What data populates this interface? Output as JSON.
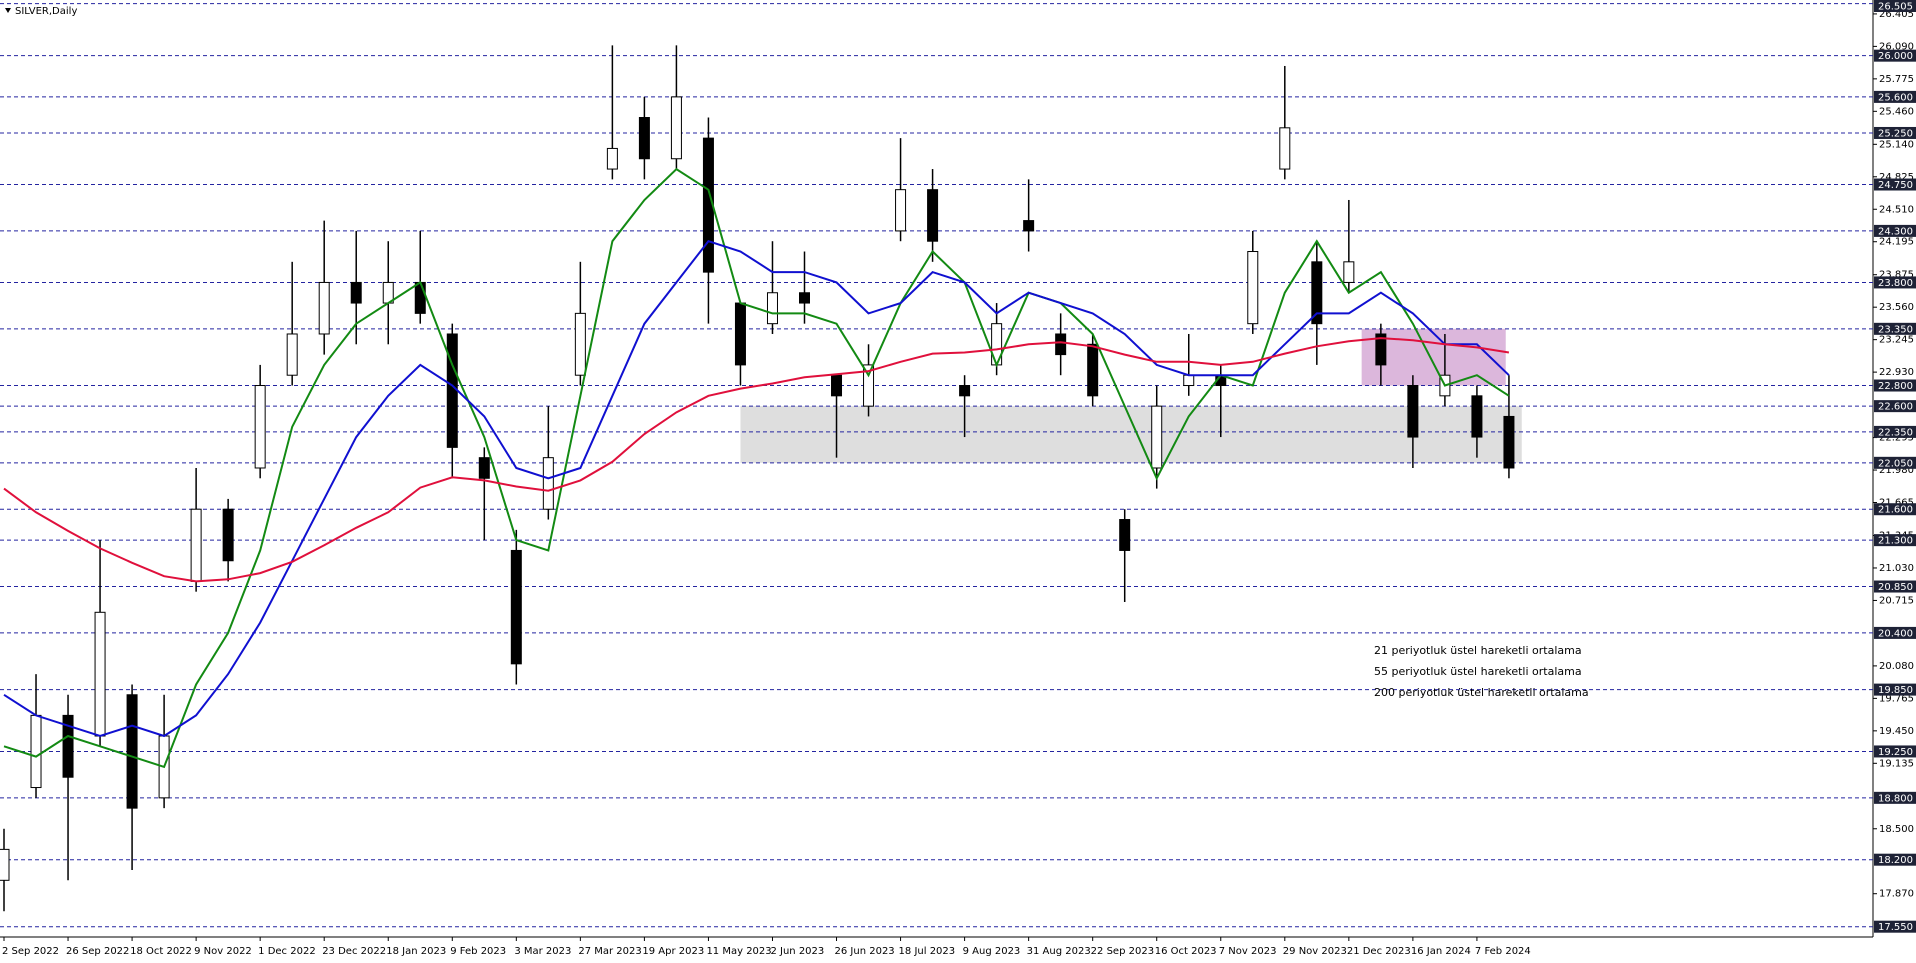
{
  "chart_data": {
    "type": "ohlc",
    "title": "SILVER,Daily",
    "categories": [
      "2 Sep 2022",
      null,
      "26 Sep 2022",
      null,
      "18 Oct 2022",
      null,
      "9 Nov 2022",
      null,
      "1 Dec 2022",
      null,
      "23 Dec 2022",
      null,
      "18 Jan 2023",
      null,
      "9 Feb 2023",
      null,
      "3 Mar 2023",
      null,
      "27 Mar 2023",
      null,
      "19 Apr 2023",
      null,
      "11 May 2023",
      null,
      "2 Jun 2023",
      null,
      "26 Jun 2023",
      null,
      "18 Jul 2023",
      null,
      "9 Aug 2023",
      null,
      "31 Aug 2023",
      null,
      "22 Sep 2023",
      null,
      "16 Oct 2023",
      null,
      "7 Nov 2023",
      null,
      "29 Nov 2023",
      null,
      "21 Dec 2023",
      null,
      "16 Jan 2024",
      null,
      "7 Feb 2024",
      null
    ],
    "open": [
      18.0,
      18.9,
      19.6,
      19.4,
      19.8,
      18.8,
      20.9,
      21.6,
      22.0,
      22.9,
      23.3,
      23.8,
      23.6,
      23.8,
      23.3,
      22.1,
      21.2,
      21.6,
      22.9,
      24.9,
      25.4,
      25.0,
      25.2,
      23.6,
      23.4,
      23.7,
      22.9,
      22.6,
      24.3,
      24.7,
      22.8,
      23.0,
      24.4,
      23.3,
      23.2,
      21.5,
      22.0,
      22.8,
      22.9,
      23.4,
      24.9,
      24.0,
      23.8,
      23.3,
      22.8,
      22.7,
      22.7,
      22.5
    ],
    "high": [
      18.5,
      20.0,
      19.8,
      21.3,
      19.9,
      19.8,
      22.0,
      21.7,
      23.0,
      24.0,
      24.4,
      24.3,
      24.2,
      24.3,
      23.4,
      22.2,
      21.4,
      22.6,
      24.0,
      26.1,
      25.6,
      26.1,
      25.4,
      23.6,
      24.2,
      24.1,
      22.9,
      23.2,
      25.2,
      24.9,
      22.9,
      23.6,
      24.8,
      23.5,
      23.3,
      21.6,
      22.8,
      23.3,
      23.0,
      24.3,
      25.9,
      24.2,
      24.6,
      23.4,
      22.9,
      23.3,
      22.8,
      22.9
    ],
    "low": [
      17.7,
      18.8,
      18.0,
      19.3,
      18.1,
      18.7,
      20.8,
      20.9,
      21.9,
      22.8,
      23.1,
      23.2,
      23.2,
      23.4,
      21.9,
      21.3,
      19.9,
      21.5,
      22.8,
      24.8,
      24.8,
      24.9,
      23.4,
      22.8,
      23.3,
      23.4,
      22.1,
      22.5,
      24.2,
      24.0,
      22.3,
      22.9,
      24.1,
      22.9,
      22.6,
      20.7,
      21.8,
      22.7,
      22.3,
      23.3,
      24.8,
      23.0,
      23.7,
      22.8,
      22.0,
      22.6,
      22.1,
      21.9
    ],
    "close": [
      18.3,
      19.6,
      19.0,
      20.6,
      18.7,
      19.4,
      21.6,
      21.1,
      22.8,
      23.3,
      23.8,
      23.6,
      23.8,
      23.5,
      22.2,
      21.9,
      20.1,
      22.1,
      23.5,
      25.1,
      25.0,
      25.6,
      23.9,
      23.0,
      23.7,
      23.6,
      22.7,
      23.0,
      24.7,
      24.2,
      22.7,
      23.4,
      24.3,
      23.1,
      22.7,
      21.2,
      22.6,
      22.9,
      22.8,
      24.1,
      25.3,
      23.4,
      24.0,
      23.0,
      22.3,
      22.9,
      22.3,
      22.0
    ],
    "series": [
      {
        "name": "21 periyotluk üstel hareketli ortalama",
        "color": "#138a13",
        "values": [
          19.3,
          19.2,
          19.4,
          19.3,
          19.2,
          19.1,
          19.9,
          20.4,
          21.2,
          22.4,
          23.0,
          23.4,
          23.6,
          23.8,
          23.0,
          22.3,
          21.3,
          21.2,
          22.7,
          24.2,
          24.6,
          24.9,
          24.7,
          23.6,
          23.5,
          23.5,
          23.4,
          22.9,
          23.6,
          24.1,
          23.8,
          23.0,
          23.7,
          23.6,
          23.3,
          22.6,
          21.9,
          22.5,
          22.9,
          22.8,
          23.7,
          24.2,
          23.7,
          23.9,
          23.4,
          22.8,
          22.9,
          22.7
        ]
      },
      {
        "name": "55 periyotluk üstel hareketli ortalama",
        "color": "#1010d0",
        "values": [
          19.8,
          19.6,
          19.5,
          19.4,
          19.5,
          19.4,
          19.6,
          20.0,
          20.5,
          21.1,
          21.7,
          22.3,
          22.7,
          23.0,
          22.8,
          22.5,
          22.0,
          21.9,
          22.0,
          22.7,
          23.4,
          23.8,
          24.2,
          24.1,
          23.9,
          23.9,
          23.8,
          23.5,
          23.6,
          23.9,
          23.8,
          23.5,
          23.7,
          23.6,
          23.5,
          23.3,
          23.0,
          22.9,
          22.9,
          22.9,
          23.2,
          23.5,
          23.5,
          23.7,
          23.5,
          23.2,
          23.2,
          22.9
        ]
      },
      {
        "name": "200 periyotluk üstel hareketli ortalama",
        "color": "#e0103c",
        "values": [
          21.8,
          21.57,
          21.39,
          21.22,
          21.08,
          20.95,
          20.9,
          20.92,
          20.98,
          21.09,
          21.25,
          21.42,
          21.57,
          21.81,
          21.91,
          21.88,
          21.82,
          21.78,
          21.88,
          22.06,
          22.33,
          22.54,
          22.7,
          22.77,
          22.82,
          22.88,
          22.91,
          22.94,
          23.03,
          23.11,
          23.12,
          23.15,
          23.2,
          23.22,
          23.18,
          23.1,
          23.03,
          23.03,
          23.0,
          23.03,
          23.11,
          23.18,
          23.23,
          23.26,
          23.24,
          23.2,
          23.17,
          23.12
        ]
      }
    ],
    "ylim": [
      17.45,
      26.54
    ],
    "yticks": [
      26.405,
      {
        "value": 26.09,
        "label": "26.090"
      },
      25.775,
      {
        "value": 25.46,
        "label": "25.460"
      },
      {
        "value": 25.14,
        "label": "25.140"
      },
      24.825,
      {
        "value": 24.51,
        "label": "24.510"
      },
      24.195,
      23.875,
      {
        "value": 23.56,
        "label": "23.560"
      },
      23.245,
      {
        "value": 22.93,
        "label": "22.930"
      },
      22.295,
      {
        "value": 21.98,
        "label": "21.980"
      },
      21.665,
      21.345,
      {
        "value": 21.03,
        "label": "21.030"
      },
      20.715,
      {
        "value": 20.08,
        "label": "20.080"
      },
      19.765,
      {
        "value": 19.45,
        "label": "19.450"
      },
      19.135,
      {
        "value": 18.5,
        "label": "18.500"
      },
      {
        "value": 17.87,
        "label": "17.870"
      }
    ],
    "levels": [
      26.505,
      {
        "value": 26.0,
        "label": "26.000"
      },
      {
        "value": 25.6,
        "label": "25.600"
      },
      {
        "value": 25.25,
        "label": "25.250"
      },
      {
        "value": 24.75,
        "label": "24.750"
      },
      {
        "value": 24.3,
        "label": "24.300"
      },
      {
        "value": 23.8,
        "label": "23.800"
      },
      {
        "value": 23.35,
        "label": "23.350"
      },
      {
        "value": 22.8,
        "label": "22.800"
      },
      {
        "value": 22.6,
        "label": "22.600"
      },
      {
        "value": 22.35,
        "label": "22.350"
      },
      {
        "value": 22.05,
        "label": "22.050"
      },
      {
        "value": 21.6,
        "label": "21.600"
      },
      {
        "value": 21.3,
        "label": "21.300"
      },
      {
        "value": 20.85,
        "label": "20.850"
      },
      {
        "value": 20.4,
        "label": "20.400"
      },
      {
        "value": 19.85,
        "label": "19.850"
      },
      {
        "value": 19.25,
        "label": "19.250"
      },
      {
        "value": 18.8,
        "label": "18.800"
      },
      {
        "value": 18.2,
        "label": "18.200"
      },
      {
        "value": 17.55,
        "label": "17.550"
      }
    ],
    "level_color": "#2424a0",
    "zones": [
      {
        "y": [
          22.05,
          22.6
        ],
        "x": [
          23,
          47.4
        ],
        "color": "#d8d8d8"
      },
      {
        "y": [
          22.8,
          23.35
        ],
        "x": [
          42.4,
          46.9
        ],
        "color": "#d6aad6"
      }
    ],
    "grid": false
  }
}
